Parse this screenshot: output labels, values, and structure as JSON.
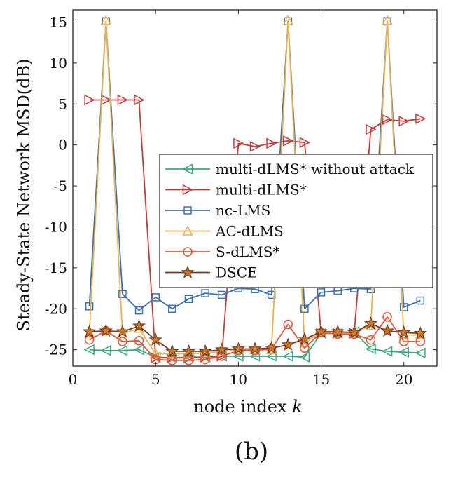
{
  "caption": "(b)",
  "chart_data": {
    "type": "line",
    "title": "",
    "xlabel": "node index k",
    "xlabel_text": "node index ",
    "xlabel_italic": "k",
    "ylabel": "Steady-State Network MSD(dB)",
    "xlim": [
      0,
      22
    ],
    "ylim": [
      -27,
      16.5
    ],
    "xticks": [
      0,
      5,
      10,
      15,
      20
    ],
    "yticks": [
      -25,
      -20,
      -15,
      -10,
      -5,
      0,
      5,
      10,
      15
    ],
    "xtick_labels": [
      "0",
      "5",
      "10",
      "15",
      "20"
    ],
    "ytick_labels": [
      "-25",
      "-20",
      "-15",
      "-10",
      "-5",
      "0",
      "5",
      "10",
      "15"
    ],
    "grid": false,
    "legend_position": "center-right",
    "x": [
      1,
      2,
      3,
      4,
      5,
      6,
      7,
      8,
      9,
      10,
      11,
      12,
      13,
      14,
      15,
      16,
      17,
      18,
      19,
      20,
      21
    ],
    "series": [
      {
        "name": "multi-dLMS* without attack",
        "color": "#3aaa83",
        "marker": "triangle-left",
        "values": [
          -25.0,
          -25.1,
          -25.1,
          -25.0,
          -25.9,
          -26.0,
          -25.9,
          -25.9,
          -25.8,
          -25.8,
          -25.8,
          -25.8,
          -25.8,
          -25.9,
          -23.0,
          -23.0,
          -22.8,
          -24.9,
          -25.2,
          -25.3,
          -25.4
        ]
      },
      {
        "name": "multi-dLMS*",
        "color": "#c23a3a",
        "marker": "triangle-right",
        "values": [
          5.5,
          5.5,
          5.5,
          5.5,
          -26.0,
          -26.0,
          -26.0,
          -25.9,
          -25.8,
          0.2,
          -0.2,
          0.2,
          0.5,
          0.3,
          -23.0,
          -23.0,
          -23.0,
          1.9,
          3.1,
          2.9,
          3.2
        ]
      },
      {
        "name": "nc-LMS",
        "color": "#3b6fb6",
        "marker": "square",
        "values": [
          -19.7,
          15.1,
          -18.2,
          -20.2,
          -18.6,
          -20.0,
          -18.8,
          -18.1,
          -18.3,
          -17.5,
          -17.6,
          -18.3,
          15.1,
          -20.0,
          -18.0,
          -17.8,
          -17.5,
          -17.6,
          15.1,
          -19.8,
          -19.0
        ]
      },
      {
        "name": "AC-dLMS",
        "color": "#e8b24e",
        "marker": "triangle-up",
        "values": [
          -23.0,
          15.2,
          -23.0,
          -22.4,
          -25.5,
          -25.5,
          -25.5,
          -25.4,
          -25.2,
          -25.0,
          -25.0,
          -25.0,
          15.2,
          -24.2,
          -22.8,
          -23.0,
          -23.0,
          -22.0,
          15.2,
          -23.2,
          -23.2
        ]
      },
      {
        "name": "S-dLMS*",
        "color": "#e0563b",
        "marker": "circle",
        "values": [
          -23.8,
          -22.7,
          -24.0,
          -23.9,
          -26.2,
          -26.3,
          -26.3,
          -26.2,
          -25.8,
          -25.1,
          -25.1,
          -24.9,
          -21.9,
          -24.8,
          -22.9,
          -23.1,
          -23.1,
          -23.8,
          -21.0,
          -24.0,
          -24.0
        ]
      },
      {
        "name": "DSCE",
        "color": "#7b3a22",
        "marker": "star",
        "values": [
          -22.8,
          -22.7,
          -22.8,
          -22.1,
          -23.8,
          -25.2,
          -25.2,
          -25.2,
          -25.0,
          -24.9,
          -24.9,
          -24.8,
          -24.4,
          -23.7,
          -22.8,
          -22.8,
          -22.9,
          -21.8,
          -22.7,
          -22.9,
          -23.0
        ]
      }
    ]
  }
}
